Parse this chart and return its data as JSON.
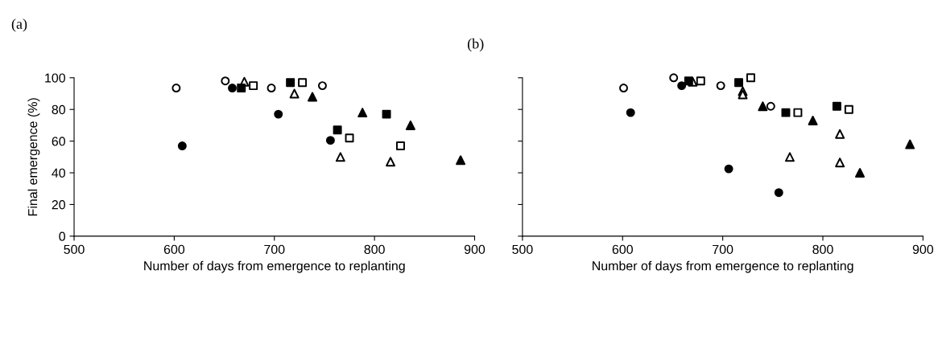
{
  "chart_data": [
    {
      "type": "scatter",
      "title": "(a)",
      "xlabel": "Number of days from emergence to replanting",
      "ylabel": "Final emergence (%)",
      "xlim": [
        500,
        900
      ],
      "xticks": [
        500,
        600,
        700,
        800,
        900
      ],
      "ylim": [
        0,
        100
      ],
      "yticks": [
        0,
        20,
        40,
        60,
        80,
        100
      ],
      "grid": false,
      "legend": false,
      "series": [
        {
          "marker": "circle",
          "color": "#ffffff",
          "x": [
            602,
            651,
            697,
            748
          ],
          "values": [
            93.5,
            98,
            93.5,
            95
          ]
        },
        {
          "marker": "circle",
          "color": "#000000",
          "x": [
            608,
            658,
            704,
            756
          ],
          "values": [
            57,
            93.5,
            77,
            60.5
          ]
        },
        {
          "marker": "triangle",
          "color": "#ffffff",
          "x": [
            670,
            720,
            766,
            816
          ],
          "values": [
            97.5,
            90,
            50,
            47
          ]
        },
        {
          "marker": "triangle",
          "color": "#000000",
          "x": [
            738,
            788,
            836,
            886
          ],
          "values": [
            88,
            78,
            70,
            48
          ]
        },
        {
          "marker": "square",
          "color": "#ffffff",
          "x": [
            679,
            728,
            775,
            826
          ],
          "values": [
            95,
            97,
            62,
            57
          ]
        },
        {
          "marker": "square",
          "color": "#000000",
          "x": [
            667,
            716,
            763,
            812
          ],
          "values": [
            93.5,
            97,
            67,
            77
          ]
        }
      ]
    },
    {
      "type": "scatter",
      "title": "(b)",
      "xlabel": "Number of days from emergence to replanting",
      "xlim": [
        500,
        900
      ],
      "xticks": [
        500,
        600,
        700,
        800,
        900
      ],
      "ylim": [
        0,
        100
      ],
      "yticks": [
        0,
        20,
        40,
        60,
        80,
        100
      ],
      "tick_labels": "x",
      "grid": false,
      "legend": false,
      "series": [
        {
          "marker": "circle",
          "color": "#ffffff",
          "x": [
            601,
            651,
            698,
            748
          ],
          "values": [
            93.5,
            100,
            95,
            82
          ]
        },
        {
          "marker": "circle",
          "color": "#000000",
          "x": [
            608,
            659,
            706,
            756
          ],
          "values": [
            78,
            95,
            42.5,
            27.5
          ]
        },
        {
          "marker": "triangle",
          "color": "#ffffff",
          "x": [
            670,
            720,
            720,
            767,
            817,
            817
          ],
          "values": [
            97.5,
            91.5,
            89.5,
            50,
            64.5,
            46.5
          ]
        },
        {
          "marker": "triangle",
          "color": "#000000",
          "x": [
            740,
            790,
            837,
            887
          ],
          "values": [
            82,
            73,
            40,
            58
          ]
        },
        {
          "marker": "square",
          "color": "#ffffff",
          "x": [
            678,
            728,
            775,
            826
          ],
          "values": [
            98,
            100,
            78,
            80
          ]
        },
        {
          "marker": "square",
          "color": "#000000",
          "x": [
            666,
            716,
            763,
            814
          ],
          "values": [
            98,
            97,
            78,
            82
          ]
        }
      ]
    }
  ]
}
